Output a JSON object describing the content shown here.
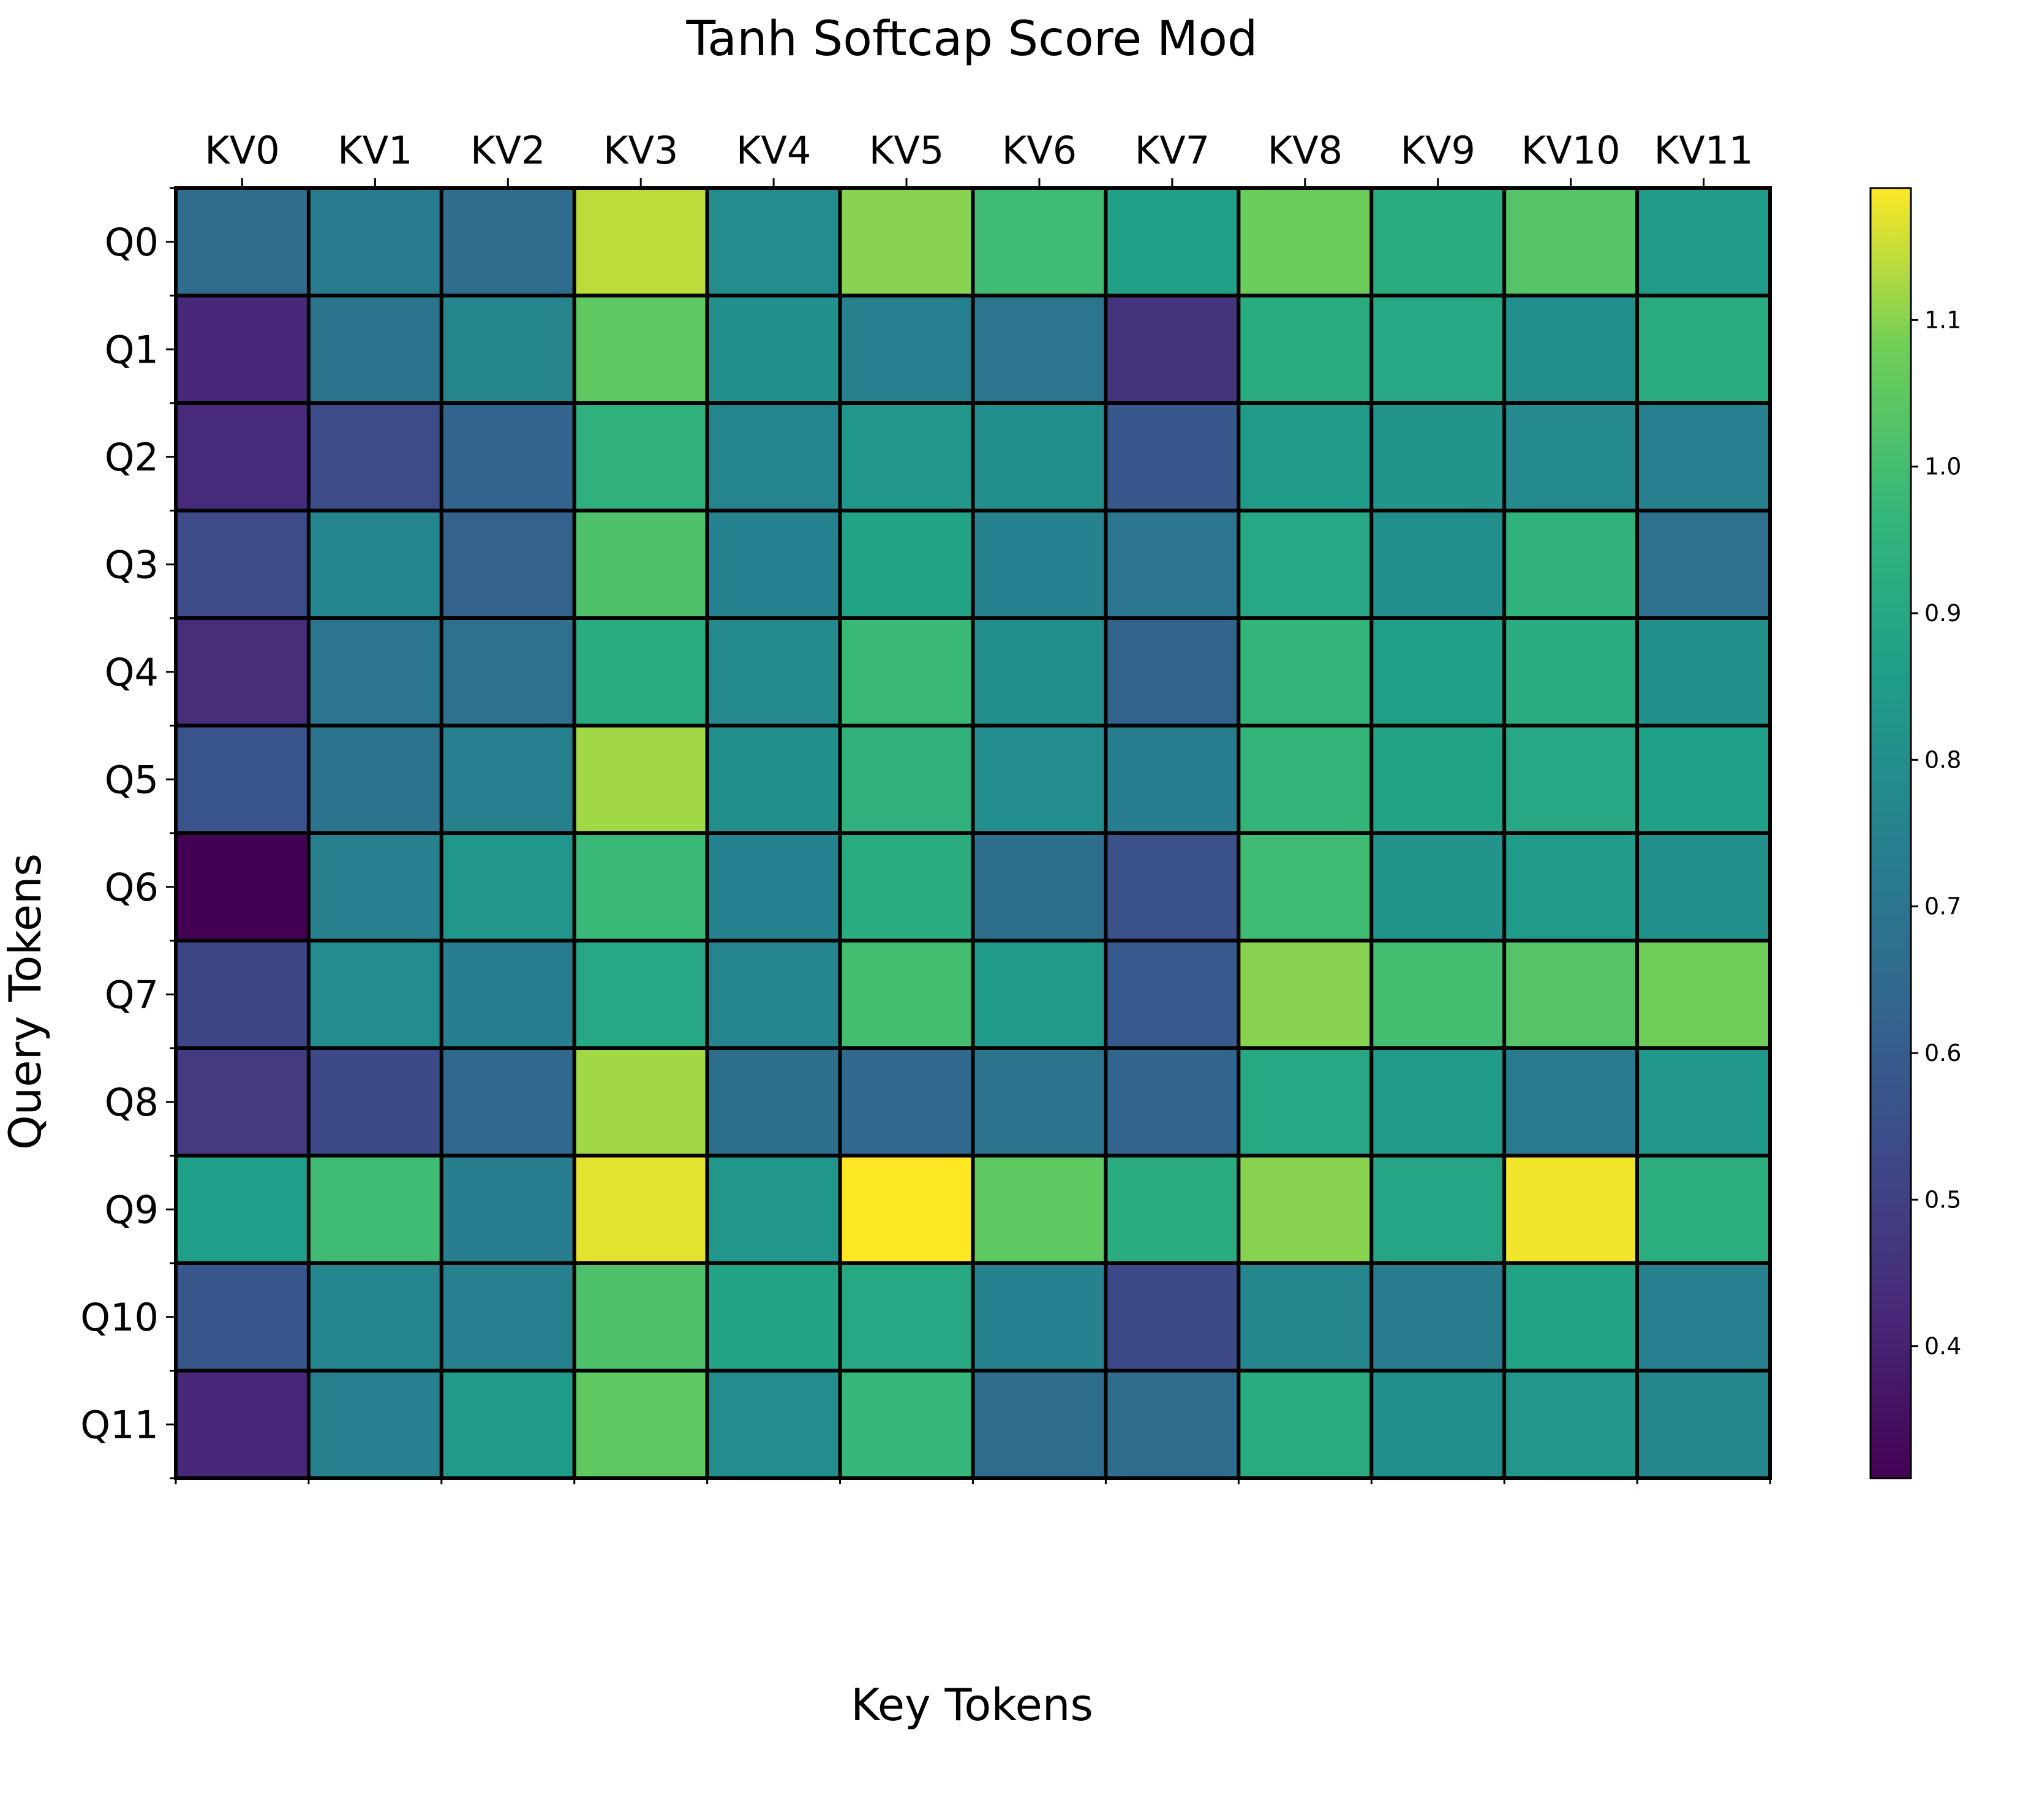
{
  "chart_data": {
    "type": "heatmap",
    "title": "Tanh Softcap Score Mod",
    "xlabel": "Key Tokens",
    "ylabel": "Query Tokens",
    "x_categories": [
      "KV0",
      "KV1",
      "KV2",
      "KV3",
      "KV4",
      "KV5",
      "KV6",
      "KV7",
      "KV8",
      "KV9",
      "KV10",
      "KV11"
    ],
    "y_categories": [
      "Q0",
      "Q1",
      "Q2",
      "Q3",
      "Q4",
      "Q5",
      "Q6",
      "Q7",
      "Q8",
      "Q9",
      "Q10",
      "Q11"
    ],
    "values": [
      [
        0.66,
        0.72,
        0.66,
        1.14,
        0.79,
        1.1,
        0.99,
        0.87,
        1.07,
        0.92,
        1.03,
        0.85
      ],
      [
        0.42,
        0.69,
        0.77,
        1.05,
        0.81,
        0.74,
        0.7,
        0.46,
        0.92,
        0.9,
        0.8,
        0.92
      ],
      [
        0.43,
        0.54,
        0.63,
        0.94,
        0.76,
        0.83,
        0.8,
        0.58,
        0.85,
        0.82,
        0.78,
        0.74
      ],
      [
        0.54,
        0.76,
        0.62,
        1.02,
        0.75,
        0.88,
        0.75,
        0.7,
        0.9,
        0.8,
        0.95,
        0.68
      ],
      [
        0.44,
        0.7,
        0.68,
        0.92,
        0.78,
        0.98,
        0.8,
        0.63,
        0.96,
        0.87,
        0.92,
        0.81
      ],
      [
        0.57,
        0.69,
        0.74,
        1.12,
        0.8,
        0.94,
        0.79,
        0.73,
        0.96,
        0.88,
        0.9,
        0.87
      ],
      [
        0.31,
        0.74,
        0.83,
        0.98,
        0.75,
        0.92,
        0.67,
        0.56,
        0.99,
        0.82,
        0.85,
        0.81
      ],
      [
        0.52,
        0.79,
        0.73,
        0.9,
        0.76,
        1.0,
        0.85,
        0.59,
        1.1,
        1.0,
        1.03,
        1.08
      ],
      [
        0.48,
        0.53,
        0.64,
        1.12,
        0.67,
        0.65,
        0.69,
        0.63,
        0.9,
        0.85,
        0.72,
        0.84
      ],
      [
        0.86,
        0.99,
        0.73,
        1.17,
        0.83,
        1.19,
        1.05,
        0.92,
        1.1,
        0.89,
        1.18,
        0.93
      ],
      [
        0.58,
        0.76,
        0.74,
        1.02,
        0.88,
        0.9,
        0.75,
        0.53,
        0.77,
        0.72,
        0.88,
        0.74
      ],
      [
        0.42,
        0.74,
        0.85,
        1.05,
        0.79,
        0.97,
        0.66,
        0.66,
        0.92,
        0.8,
        0.83,
        0.77
      ]
    ],
    "colormap": "viridis",
    "vmin": 0.31,
    "vmax": 1.19,
    "colorbar_ticks": [
      0.4,
      0.5,
      0.6,
      0.7,
      0.8,
      0.9,
      1.0,
      1.1
    ],
    "colorbar_tick_labels": [
      "0.4",
      "0.5",
      "0.6",
      "0.7",
      "0.8",
      "0.9",
      "1.0",
      "1.1"
    ],
    "x_ticks_position": "top",
    "cell_border_color": "#000000"
  }
}
